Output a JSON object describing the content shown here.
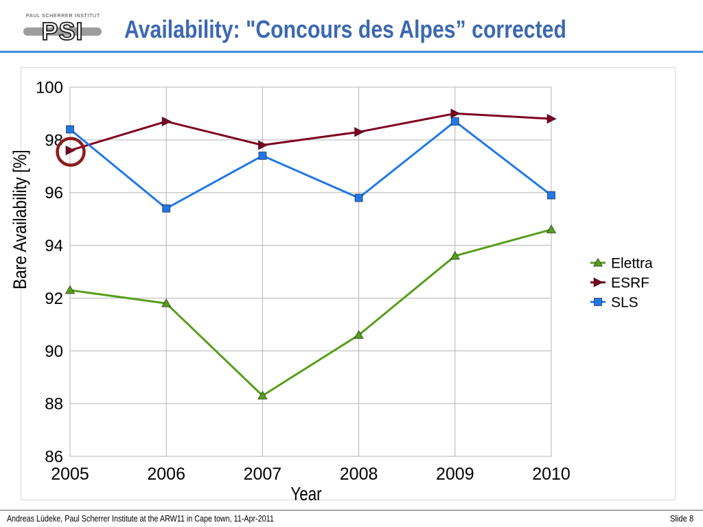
{
  "header": {
    "logo_caption": "PAUL SCHERRER INSTITUT",
    "logo_text": "PSI",
    "title": "Availability: \"Concours des Alpes” corrected",
    "title_color": "#3c68b1",
    "accent_color": "#3c8fe0"
  },
  "chart_data": {
    "type": "line",
    "x": [
      2005,
      2006,
      2007,
      2008,
      2009,
      2010
    ],
    "xlabel": "Year",
    "ylabel": "Bare Availability [%]",
    "ylim": [
      86,
      100
    ],
    "yticks": [
      100,
      98,
      96,
      94,
      92,
      90,
      88,
      86
    ],
    "grid": true,
    "legend": "right",
    "series": [
      {
        "name": "Elettra",
        "values": [
          92.3,
          91.8,
          88.3,
          90.6,
          93.6,
          94.6
        ],
        "color": "#579d1c",
        "marker": "triangle-up"
      },
      {
        "name": "ESRF",
        "values": [
          97.6,
          98.7,
          97.8,
          98.3,
          99.0,
          98.8
        ],
        "color": "#7e0021",
        "marker": "triangle-right"
      },
      {
        "name": "SLS",
        "values": [
          98.4,
          95.4,
          97.4,
          95.8,
          98.7,
          95.9
        ],
        "color": "#2277e6",
        "marker": "square"
      }
    ],
    "highlight": {
      "x": 2005,
      "y": 97.6,
      "color": "#8b1c1c"
    }
  },
  "footer": {
    "credit": "Andreas Lüdeke, Paul Scherrer Institute at the ARW11 in Cape town, 11-Apr-2011",
    "slide_label": "Slide 8"
  }
}
